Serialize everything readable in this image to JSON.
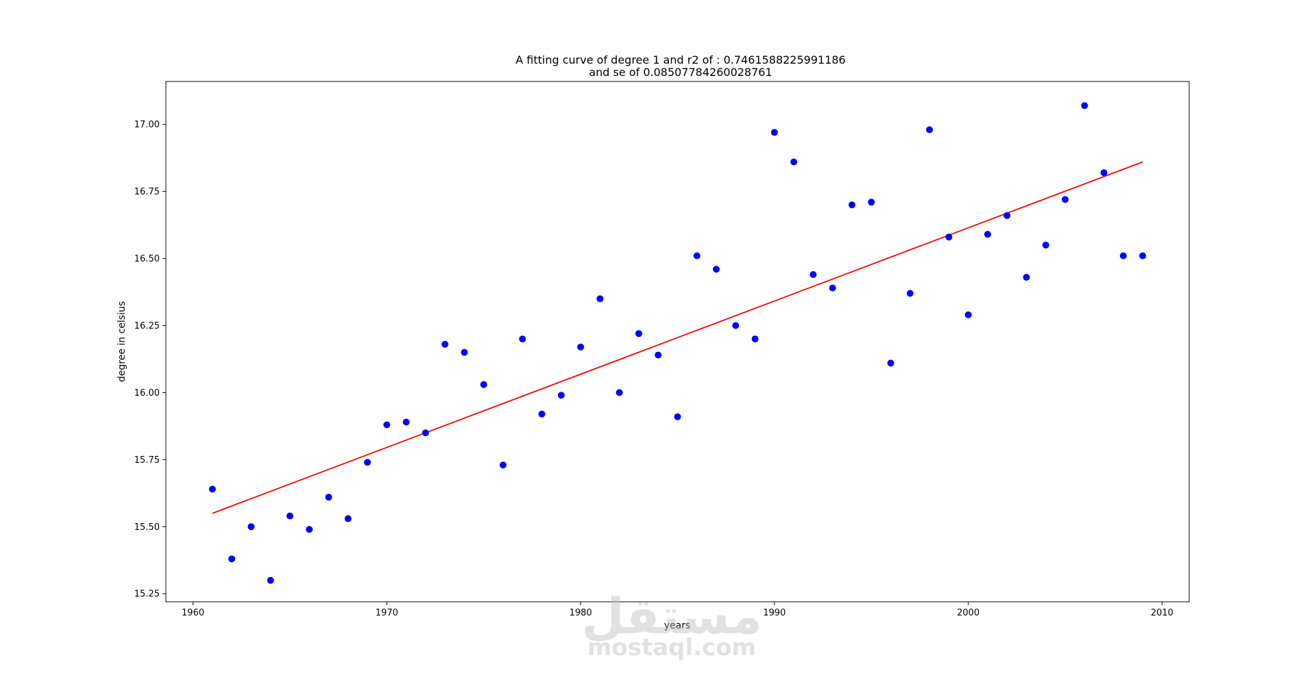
{
  "chart_data": {
    "type": "scatter",
    "title_lines": [
      "A fitting curve of degree 1  and r2 of : 0.7461588225991186",
      "and se of 0.08507784260028761"
    ],
    "xlabel": "years",
    "ylabel": "degree in celsius",
    "xlim": [
      1958.6,
      2011.4
    ],
    "ylim": [
      15.22,
      17.16
    ],
    "x_ticks": [
      1960,
      1970,
      1980,
      1990,
      2000,
      2010
    ],
    "x_tick_labels": [
      "1960",
      "1970",
      "1980",
      "1990",
      "2000",
      "2010"
    ],
    "y_ticks": [
      15.25,
      15.5,
      15.75,
      16.0,
      16.25,
      16.5,
      16.75,
      17.0
    ],
    "y_tick_labels": [
      "15.25",
      "15.50",
      "15.75",
      "16.00",
      "16.25",
      "16.50",
      "16.75",
      "17.00"
    ],
    "grid": false,
    "series": [
      {
        "type": "scatter",
        "color": "#0000ff",
        "x": [
          1961,
          1962,
          1963,
          1964,
          1965,
          1966,
          1967,
          1968,
          1969,
          1970,
          1971,
          1972,
          1973,
          1974,
          1975,
          1976,
          1977,
          1978,
          1979,
          1980,
          1981,
          1982,
          1983,
          1984,
          1985,
          1986,
          1987,
          1988,
          1989,
          1990,
          1991,
          1992,
          1993,
          1994,
          1995,
          1996,
          1997,
          1998,
          1999,
          2000,
          2001,
          2002,
          2003,
          2004,
          2005,
          2006,
          2007,
          2008,
          2009
        ],
        "y": [
          15.64,
          15.38,
          15.5,
          15.3,
          15.54,
          15.49,
          15.61,
          15.53,
          15.74,
          15.88,
          15.89,
          15.85,
          16.18,
          16.15,
          16.03,
          15.73,
          16.2,
          15.92,
          15.99,
          16.17,
          16.35,
          16.0,
          16.22,
          16.14,
          15.91,
          16.51,
          16.46,
          16.25,
          16.2,
          16.97,
          16.86,
          16.44,
          16.39,
          16.7,
          16.71,
          16.11,
          16.37,
          16.98,
          16.58,
          16.29,
          16.59,
          16.66,
          16.43,
          16.55,
          16.72,
          17.07,
          16.82,
          16.51,
          16.51
        ]
      },
      {
        "type": "line",
        "color": "#ff0000",
        "x": [
          1961,
          2009
        ],
        "y": [
          15.55,
          16.86
        ]
      }
    ]
  },
  "watermark": {
    "arabic": "مستقل",
    "latin": "mostaql.com"
  }
}
